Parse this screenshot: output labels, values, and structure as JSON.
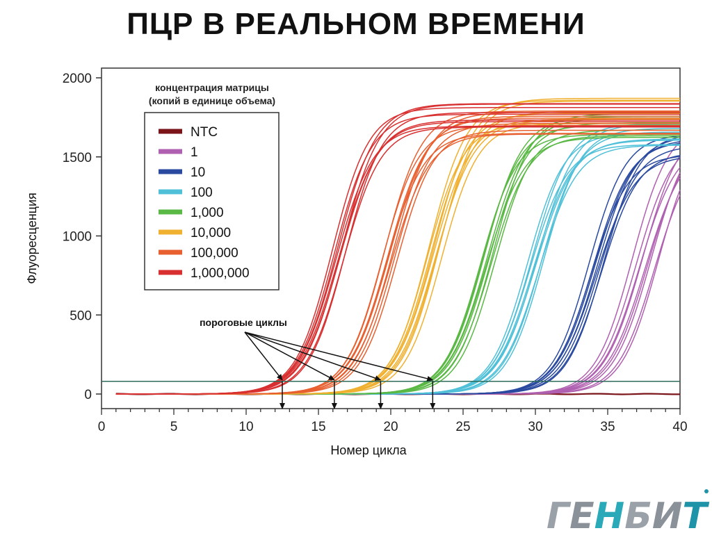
{
  "slide": {
    "title": "ПЦР В РЕАЛЬНОМ ВРЕМЕНИ"
  },
  "logo": {
    "text": "ГЕНБИТ",
    "colors": [
      "#9aa1a8",
      "#8a9199",
      "#2aa9b8",
      "#9aa1a8",
      "#8a9199",
      "#1f93a8"
    ]
  },
  "chart_data": {
    "type": "line",
    "xlabel": "Номер цикла",
    "ylabel": "Флуоресценция",
    "xlim": [
      0,
      40
    ],
    "ylim": [
      0,
      2000
    ],
    "xticks": [
      0,
      5,
      10,
      15,
      20,
      25,
      30,
      35,
      40
    ],
    "yticks": [
      0,
      500,
      1000,
      1500,
      2000
    ],
    "grid": false,
    "legend": {
      "title_lines": [
        "концентрация матрицы",
        "(копий в единице объема)"
      ],
      "placement": "top-left"
    },
    "threshold": {
      "y": 80,
      "color": "#2e6b5a"
    },
    "series": [
      {
        "name": "NTC",
        "color": "#7a1418",
        "midpoint": null,
        "plateau": 0
      },
      {
        "name": "1",
        "color": "#b060b0",
        "midpoint": 37.6,
        "plateau": 1650,
        "spread": 0.9
      },
      {
        "name": "10",
        "color": "#2a4aa0",
        "midpoint": 34.2,
        "plateau": 1580,
        "spread": 0.5
      },
      {
        "name": "100",
        "color": "#50c0d8",
        "midpoint": 30.0,
        "plateau": 1640,
        "spread": 0.55
      },
      {
        "name": "1,000",
        "color": "#5ab845",
        "midpoint": 26.7,
        "plateau": 1700,
        "spread": 0.5
      },
      {
        "name": "10,000",
        "color": "#f0b030",
        "midpoint": 23.0,
        "plateau": 1790,
        "spread": 0.5
      },
      {
        "name": "100,000",
        "color": "#e86030",
        "midpoint": 19.9,
        "plateau": 1720,
        "spread": 0.5
      },
      {
        "name": "1,000,000",
        "color": "#d83030",
        "midpoint": 16.4,
        "plateau": 1760,
        "spread": 0.45
      }
    ],
    "annotation": {
      "text": "пороговые циклы",
      "threshold_cycles": [
        12.5,
        16.1,
        19.3,
        22.9
      ]
    }
  }
}
